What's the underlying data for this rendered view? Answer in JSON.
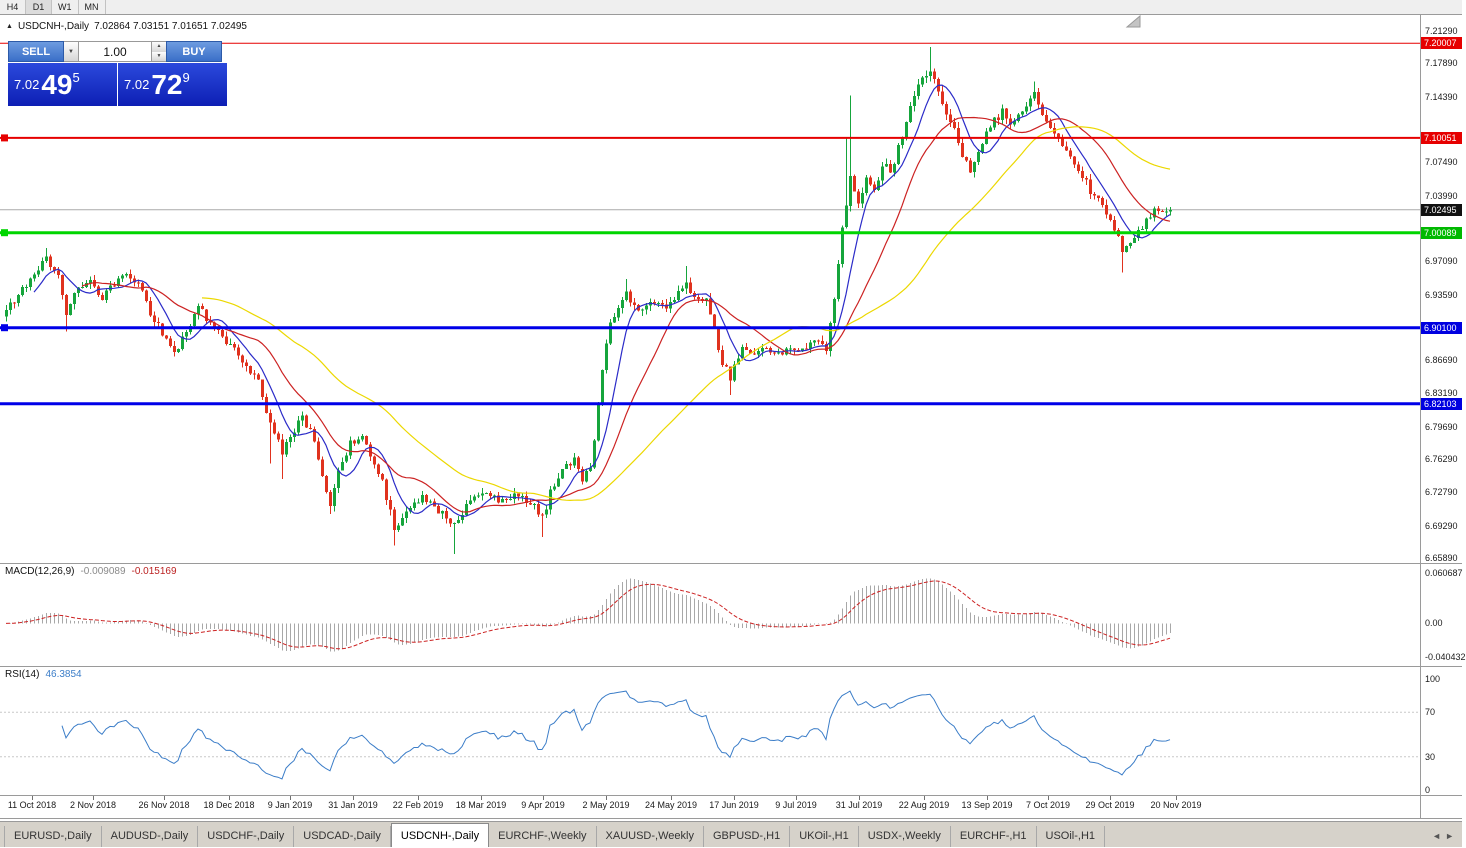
{
  "toolbar": {
    "timeframes": [
      {
        "label": "H4",
        "active": false
      },
      {
        "label": "D1",
        "active": true
      },
      {
        "label": "W1",
        "active": false
      },
      {
        "label": "MN",
        "active": false
      }
    ]
  },
  "chart_header": {
    "marker": "▲",
    "title": "USDCNH-,Daily",
    "ohlc": "7.02864 7.03151 7.01651 7.02495"
  },
  "order_panel": {
    "sell_label": "SELL",
    "buy_label": "BUY",
    "volume": "1.00",
    "dropdown_icon": "▼",
    "spin_up_icon": "▲",
    "spin_down_icon": "▼",
    "sell_price": {
      "prefix": "7.02",
      "big": "49",
      "sup": "5"
    },
    "buy_price": {
      "prefix": "7.02",
      "big": "72",
      "sup": "9"
    }
  },
  "price_axis": {
    "labels": [
      {
        "text": "7.21290",
        "price": 7.2129
      },
      {
        "text": "7.17890",
        "price": 7.1789
      },
      {
        "text": "7.14390",
        "price": 7.1439
      },
      {
        "text": "7.07490",
        "price": 7.0749
      },
      {
        "text": "7.03990",
        "price": 7.0399
      },
      {
        "text": "6.97090",
        "price": 6.9709
      },
      {
        "text": "6.93590",
        "price": 6.9359
      },
      {
        "text": "6.86690",
        "price": 6.8669
      },
      {
        "text": "6.83190",
        "price": 6.8319
      },
      {
        "text": "6.79690",
        "price": 6.7969
      },
      {
        "text": "6.76290",
        "price": 6.7629
      },
      {
        "text": "6.72790",
        "price": 6.7279
      },
      {
        "text": "6.69290",
        "price": 6.6929
      },
      {
        "text": "6.65890",
        "price": 6.6589
      }
    ],
    "badges": [
      {
        "text": "7.20007",
        "price": 7.20007,
        "color": "#e60000"
      },
      {
        "text": "7.10051",
        "price": 7.10051,
        "color": "#e60000"
      },
      {
        "text": "7.02495",
        "price": 7.02495,
        "color": "#111111"
      },
      {
        "text": "7.00089",
        "price": 7.00089,
        "color": "#00b900"
      },
      {
        "text": "6.90100",
        "price": 6.901,
        "color": "#0000e0"
      },
      {
        "text": "6.82103",
        "price": 6.82103,
        "color": "#0000e0"
      }
    ]
  },
  "macd_panel": {
    "label": "MACD(12,26,9)",
    "value_main": "-0.009089",
    "value_signal": "-0.015169",
    "axis": [
      {
        "text": "0.060687",
        "value": 0.060687
      },
      {
        "text": "0.00",
        "value": 0
      },
      {
        "text": "-0.040432",
        "value": -0.040432
      }
    ]
  },
  "rsi_panel": {
    "label": "RSI(14)",
    "value": "46.3854",
    "axis": [
      {
        "text": "100",
        "value": 100
      },
      {
        "text": "70",
        "value": 70
      },
      {
        "text": "30",
        "value": 30
      },
      {
        "text": "0",
        "value": 0
      }
    ],
    "levels": [
      70,
      30
    ]
  },
  "date_axis": {
    "ticks": [
      {
        "label": "11 Oct 2018",
        "x": 32
      },
      {
        "label": "2 Nov 2018",
        "x": 93
      },
      {
        "label": "26 Nov 2018",
        "x": 164
      },
      {
        "label": "18 Dec 2018",
        "x": 229
      },
      {
        "label": "9 Jan 2019",
        "x": 290
      },
      {
        "label": "31 Jan 2019",
        "x": 353
      },
      {
        "label": "22 Feb 2019",
        "x": 418
      },
      {
        "label": "18 Mar 2019",
        "x": 481
      },
      {
        "label": "9 Apr 2019",
        "x": 543
      },
      {
        "label": "2 May 2019",
        "x": 606
      },
      {
        "label": "24 May 2019",
        "x": 671
      },
      {
        "label": "17 Jun 2019",
        "x": 734
      },
      {
        "label": "9 Jul 2019",
        "x": 796
      },
      {
        "label": "31 Jul 2019",
        "x": 859
      },
      {
        "label": "22 Aug 2019",
        "x": 924
      },
      {
        "label": "13 Sep 2019",
        "x": 987
      },
      {
        "label": "7 Oct 2019",
        "x": 1048
      },
      {
        "label": "29 Oct 2019",
        "x": 1110
      },
      {
        "label": "20 Nov 2019",
        "x": 1176
      }
    ]
  },
  "tabbar": {
    "tabs": [
      {
        "label": "EURUSD-,Daily",
        "active": false
      },
      {
        "label": "AUDUSD-,Daily",
        "active": false
      },
      {
        "label": "USDCHF-,Daily",
        "active": false
      },
      {
        "label": "USDCAD-,Daily",
        "active": false
      },
      {
        "label": "USDCNH-,Daily",
        "active": true
      },
      {
        "label": "EURCHF-,Weekly",
        "active": false
      },
      {
        "label": "XAUUSD-,Weekly",
        "active": false
      },
      {
        "label": "GBPUSD-,H1",
        "active": false
      },
      {
        "label": "UKOil-,H1",
        "active": false
      },
      {
        "label": "USDX-,Weekly",
        "active": false
      },
      {
        "label": "EURCHF-,H1",
        "active": false
      },
      {
        "label": "USOil-,H1",
        "active": false
      }
    ],
    "scroll_left": "◄",
    "scroll_right": "►"
  },
  "chart_data": {
    "type": "candlestick",
    "symbol": "USDCNH",
    "timeframe": "Daily",
    "ohlc": {
      "open": 7.02864,
      "high": 7.03151,
      "low": 7.01651,
      "close": 7.02495
    },
    "current_price": 7.02495,
    "y_range": [
      6.6589,
      7.2129
    ],
    "x_range_dates": [
      "11 Oct 2018",
      "25 Nov 2019"
    ],
    "candle_count": 292,
    "colors": {
      "up": "#16a53c",
      "down": "#e0321e",
      "macd_hist": "#a8a8a8",
      "macd_signal": "#cc2222",
      "rsi": "#3b7dc8"
    },
    "levels": [
      {
        "price": 7.20007,
        "color": "#e60000",
        "width": 1,
        "handle": false
      },
      {
        "price": 7.10051,
        "color": "#e60000",
        "width": 2,
        "handle": true
      },
      {
        "price": 7.00089,
        "color": "#00d500",
        "width": 3,
        "handle": true
      },
      {
        "price": 6.901,
        "color": "#0000e8",
        "width": 3,
        "handle": true
      },
      {
        "price": 6.82103,
        "color": "#0000e8",
        "width": 3,
        "handle": false
      }
    ],
    "moving_averages": [
      {
        "period": 8,
        "color": "#2b2bc8"
      },
      {
        "period": 20,
        "color": "#cc2222"
      },
      {
        "period": 50,
        "color": "#ecd800"
      }
    ],
    "macd": {
      "fast": 12,
      "slow": 26,
      "signal": 9,
      "last_main": -0.009089,
      "last_signal": -0.015169
    },
    "rsi": {
      "period": 14,
      "last": 46.3854
    },
    "price_path": [
      [
        0,
        6.918
      ],
      [
        3,
        6.934
      ],
      [
        6,
        6.952
      ],
      [
        10,
        6.972
      ],
      [
        13,
        6.958
      ],
      [
        15,
        6.916
      ],
      [
        18,
        6.944
      ],
      [
        21,
        6.952
      ],
      [
        24,
        6.93
      ],
      [
        27,
        6.948
      ],
      [
        30,
        6.958
      ],
      [
        33,
        6.948
      ],
      [
        36,
        6.918
      ],
      [
        39,
        6.896
      ],
      [
        42,
        6.873
      ],
      [
        45,
        6.898
      ],
      [
        48,
        6.922
      ],
      [
        51,
        6.906
      ],
      [
        54,
        6.89
      ],
      [
        57,
        6.877
      ],
      [
        60,
        6.862
      ],
      [
        63,
        6.845
      ],
      [
        66,
        6.798
      ],
      [
        69,
        6.772
      ],
      [
        71,
        6.789
      ],
      [
        74,
        6.806
      ],
      [
        77,
        6.784
      ],
      [
        79,
        6.744
      ],
      [
        81,
        6.716
      ],
      [
        83,
        6.748
      ],
      [
        86,
        6.778
      ],
      [
        89,
        6.787
      ],
      [
        91,
        6.763
      ],
      [
        94,
        6.738
      ],
      [
        97,
        6.692
      ],
      [
        99,
        6.7
      ],
      [
        101,
        6.713
      ],
      [
        104,
        6.722
      ],
      [
        107,
        6.713
      ],
      [
        110,
        6.703
      ],
      [
        112,
        6.694
      ],
      [
        114,
        6.706
      ],
      [
        116,
        6.722
      ],
      [
        120,
        6.728
      ],
      [
        124,
        6.719
      ],
      [
        128,
        6.726
      ],
      [
        131,
        6.717
      ],
      [
        134,
        6.701
      ],
      [
        136,
        6.727
      ],
      [
        139,
        6.751
      ],
      [
        142,
        6.761
      ],
      [
        144,
        6.743
      ],
      [
        146,
        6.755
      ],
      [
        147,
        6.78
      ],
      [
        149,
        6.858
      ],
      [
        151,
        6.906
      ],
      [
        153,
        6.918
      ],
      [
        155,
        6.937
      ],
      [
        157,
        6.926
      ],
      [
        159,
        6.916
      ],
      [
        161,
        6.93
      ],
      [
        163,
        6.927
      ],
      [
        165,
        6.919
      ],
      [
        168,
        6.938
      ],
      [
        170,
        6.949
      ],
      [
        172,
        6.931
      ],
      [
        175,
        6.928
      ],
      [
        177,
        6.899
      ],
      [
        179,
        6.863
      ],
      [
        181,
        6.849
      ],
      [
        184,
        6.877
      ],
      [
        187,
        6.872
      ],
      [
        190,
        6.879
      ],
      [
        193,
        6.873
      ],
      [
        196,
        6.877
      ],
      [
        199,
        6.88
      ],
      [
        202,
        6.886
      ],
      [
        205,
        6.879
      ],
      [
        207,
        6.934
      ],
      [
        209,
        7.004
      ],
      [
        211,
        7.062
      ],
      [
        213,
        7.032
      ],
      [
        215,
        7.058
      ],
      [
        217,
        7.046
      ],
      [
        219,
        7.074
      ],
      [
        221,
        7.066
      ],
      [
        223,
        7.089
      ],
      [
        225,
        7.118
      ],
      [
        227,
        7.148
      ],
      [
        229,
        7.163
      ],
      [
        231,
        7.174
      ],
      [
        233,
        7.149
      ],
      [
        235,
        7.127
      ],
      [
        237,
        7.109
      ],
      [
        239,
        7.079
      ],
      [
        241,
        7.066
      ],
      [
        243,
        7.089
      ],
      [
        245,
        7.107
      ],
      [
        247,
        7.119
      ],
      [
        249,
        7.128
      ],
      [
        251,
        7.117
      ],
      [
        253,
        7.127
      ],
      [
        255,
        7.134
      ],
      [
        257,
        7.146
      ],
      [
        259,
        7.127
      ],
      [
        261,
        7.107
      ],
      [
        263,
        7.097
      ],
      [
        265,
        7.087
      ],
      [
        267,
        7.071
      ],
      [
        269,
        7.061
      ],
      [
        271,
        7.044
      ],
      [
        273,
        7.034
      ],
      [
        275,
        7.024
      ],
      [
        277,
        7.004
      ],
      [
        279,
        6.984
      ],
      [
        281,
        6.992
      ],
      [
        283,
        7.002
      ],
      [
        285,
        7.012
      ],
      [
        287,
        7.028
      ],
      [
        289,
        7.019
      ],
      [
        291,
        7.025
      ]
    ],
    "wick_overrides": [
      {
        "i": 10,
        "high": 6.985
      },
      {
        "i": 15,
        "low": 6.897
      },
      {
        "i": 66,
        "low": 6.758
      },
      {
        "i": 69,
        "low": 6.742
      },
      {
        "i": 81,
        "low": 6.705
      },
      {
        "i": 97,
        "low": 6.672
      },
      {
        "i": 112,
        "low": 6.663
      },
      {
        "i": 134,
        "low": 6.681
      },
      {
        "i": 155,
        "high": 6.952
      },
      {
        "i": 170,
        "high": 6.966
      },
      {
        "i": 181,
        "low": 6.83
      },
      {
        "i": 210,
        "high": 7.1
      },
      {
        "i": 211,
        "high": 7.145
      },
      {
        "i": 231,
        "high": 7.196
      },
      {
        "i": 257,
        "high": 7.16
      },
      {
        "i": 279,
        "low": 6.959
      }
    ]
  }
}
